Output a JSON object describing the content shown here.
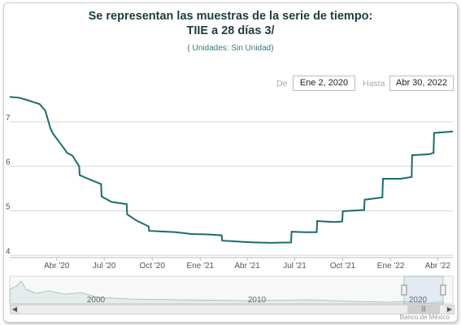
{
  "header": {
    "title_line1": "Se representan las muestras de la serie de tiempo:",
    "title_line2": "TIIE a 28 días 3/",
    "units": "( Unidades:  Sin Unidad)"
  },
  "range": {
    "from_label": "De",
    "from_value": "Ene 2, 2020",
    "to_label": "Hasta",
    "to_value": "Abr 30, 2022"
  },
  "chart_data": {
    "type": "line",
    "x_tick_labels": [
      "Abr '20",
      "Jul '20",
      "Oct '20",
      "Ene '21",
      "Abr '21",
      "Jul '21",
      "Oct '21",
      "Ene '22",
      "Abr '22"
    ],
    "y_tick_labels": [
      "4",
      "5",
      "6",
      "7"
    ],
    "ylim": [
      3.95,
      7.6
    ],
    "grid": true,
    "series_color": "#1e6b6b",
    "series": [
      {
        "x": [
          "2020-01-02",
          "2020-01-20",
          "2020-02-01",
          "2020-02-14",
          "2020-02-28",
          "2020-03-10",
          "2020-03-20",
          "2020-03-24",
          "2020-04-01",
          "2020-04-15",
          "2020-04-21",
          "2020-05-01",
          "2020-05-14",
          "2020-05-15",
          "2020-05-31",
          "2020-06-25",
          "2020-06-26",
          "2020-07-15",
          "2020-08-13",
          "2020-08-14",
          "2020-09-01",
          "2020-09-24",
          "2020-09-25",
          "2020-10-15",
          "2020-11-15",
          "2020-12-15",
          "2021-01-15",
          "2021-02-11",
          "2021-02-12",
          "2021-03-01",
          "2021-03-25",
          "2021-03-26",
          "2021-04-15",
          "2021-05-15",
          "2021-06-24",
          "2021-06-25",
          "2021-07-20",
          "2021-08-12",
          "2021-08-13",
          "2021-09-15",
          "2021-09-30",
          "2021-10-01",
          "2021-11-11",
          "2021-11-12",
          "2021-12-16",
          "2021-12-17",
          "2022-01-20",
          "2022-02-10",
          "2022-02-11",
          "2022-03-15",
          "2022-03-24",
          "2022-03-25",
          "2022-04-30"
        ],
        "y": [
          7.56,
          7.54,
          7.5,
          7.45,
          7.4,
          7.25,
          6.85,
          6.75,
          6.62,
          6.4,
          6.3,
          6.24,
          6.0,
          5.8,
          5.72,
          5.6,
          5.32,
          5.2,
          5.15,
          4.92,
          4.78,
          4.65,
          4.55,
          4.54,
          4.52,
          4.48,
          4.47,
          4.45,
          4.33,
          4.32,
          4.3,
          4.3,
          4.29,
          4.28,
          4.29,
          4.53,
          4.52,
          4.52,
          4.77,
          4.75,
          4.76,
          4.99,
          5.02,
          5.25,
          5.3,
          5.72,
          5.72,
          5.76,
          6.25,
          6.27,
          6.3,
          6.75,
          6.78
        ]
      }
    ]
  },
  "navigator": {
    "labels": [
      "2000",
      "2010",
      "2020"
    ]
  },
  "credits": "Banco de México"
}
